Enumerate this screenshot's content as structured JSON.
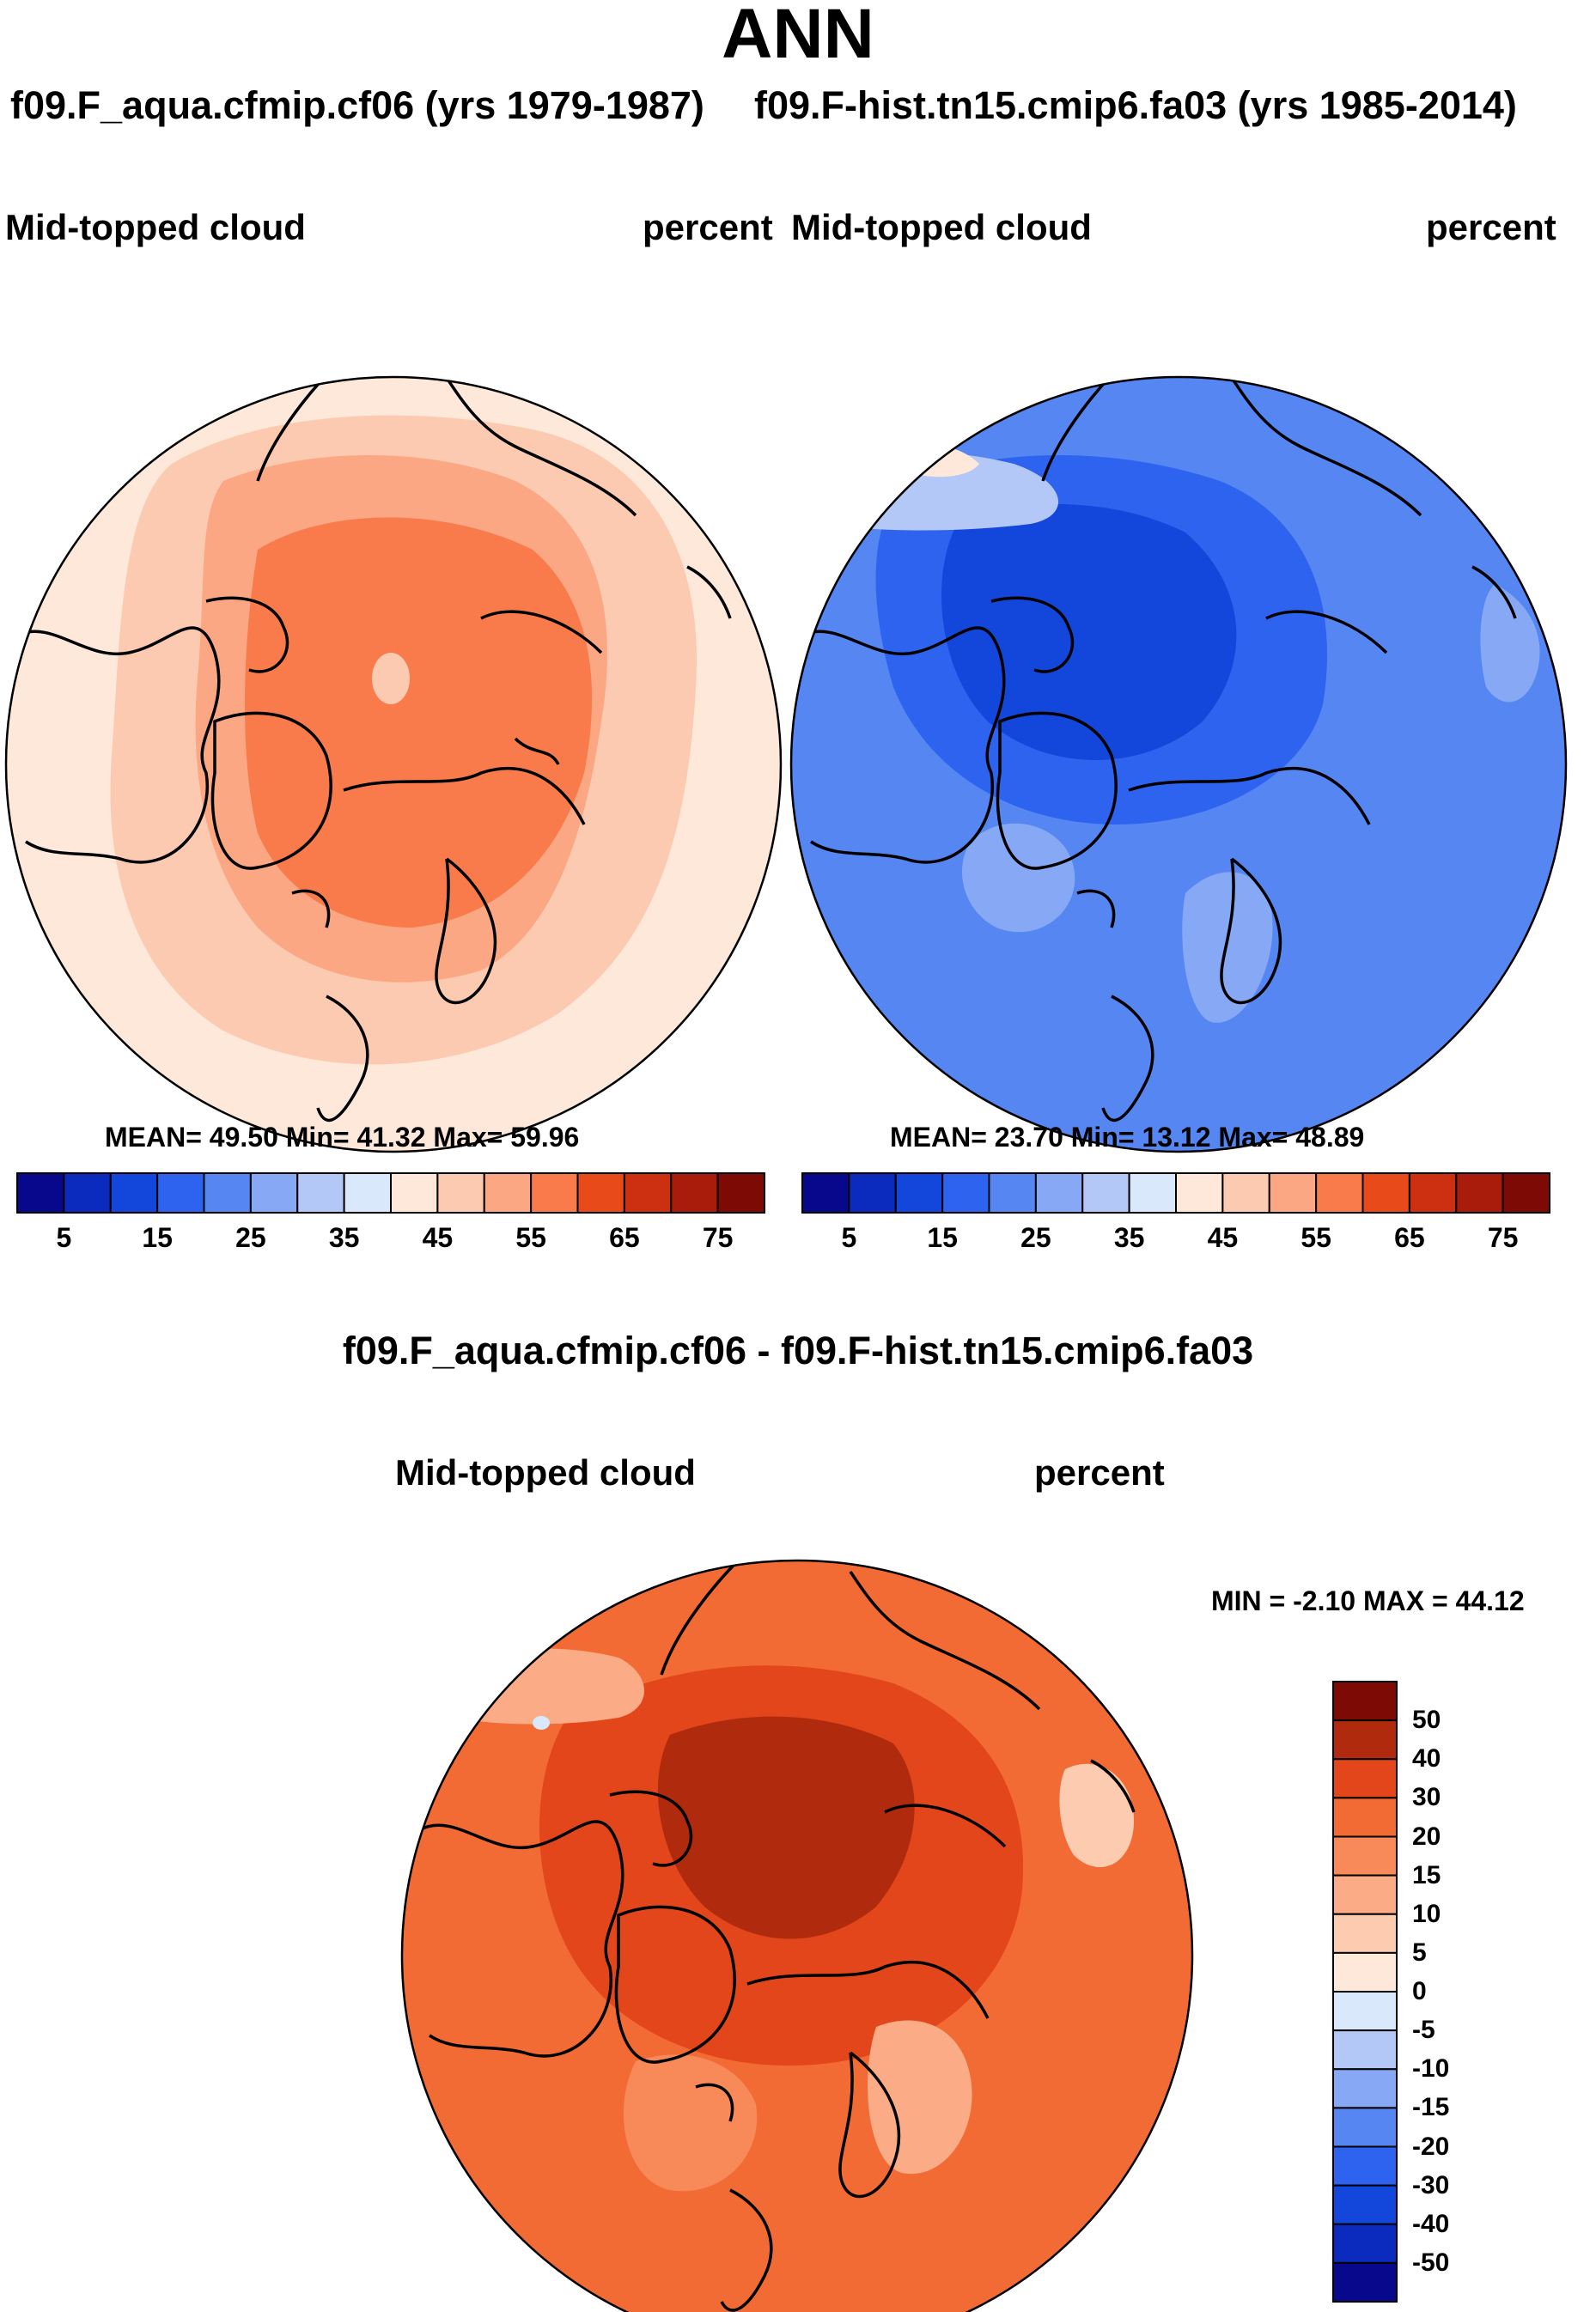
{
  "title": "ANN",
  "panels": [
    {
      "case_label": "f09.F_aqua.cfmip.cf06 (yrs 1979-1987)",
      "variable": "Mid-topped cloud",
      "units": "percent",
      "stats": "MEAN=  49.50  Min=  41.32  Max=  59.96",
      "mean": 49.5,
      "min": 41.32,
      "max": 59.96
    },
    {
      "case_label": "f09.F-hist.tn15.cmip6.fa03 (yrs 1985-2014)",
      "variable": "Mid-topped cloud",
      "units": "percent",
      "stats": "MEAN=  23.70  Min=  13.12  Max=  48.89",
      "mean": 23.7,
      "min": 13.12,
      "max": 48.89
    }
  ],
  "diff_panel": {
    "title": "f09.F_aqua.cfmip.cf06 - f09.F-hist.tn15.cmip6.fa03",
    "variable": "Mid-topped cloud",
    "units": "percent",
    "stats": "MIN =  -2.10 MAX =  44.12",
    "min": -2.1,
    "max": 44.12
  },
  "colorbar_abs": {
    "ticks": [
      "5",
      "15",
      "25",
      "35",
      "45",
      "55",
      "65",
      "75"
    ],
    "colors": [
      "#08088c",
      "#0a2bbd",
      "#1346db",
      "#2e63f0",
      "#5586f2",
      "#86a8f5",
      "#b3c8f7",
      "#d9e8fb",
      "#fde8da",
      "#fccab0",
      "#fba784",
      "#f97a4b",
      "#e84a1a",
      "#cc3010",
      "#a91c0b",
      "#7e0a05"
    ]
  },
  "colorbar_diff": {
    "ticks": [
      "50",
      "40",
      "30",
      "20",
      "15",
      "10",
      "5",
      "0",
      "-5",
      "-10",
      "-15",
      "-20",
      "-30",
      "-40",
      "-50"
    ],
    "colors": [
      "#7e0a05",
      "#b02a0e",
      "#e3461a",
      "#f26b35",
      "#f88a5a",
      "#fbab85",
      "#fdcbb0",
      "#fde8da",
      "#d9e8fb",
      "#b3c8f7",
      "#86a8f5",
      "#5586f2",
      "#2e63f0",
      "#1346db",
      "#0a2bbd",
      "#08088c"
    ]
  },
  "chart_data": [
    {
      "type": "heatmap",
      "title": "Mid-topped cloud",
      "subtitle": "f09.F_aqua.cfmip.cf06 (yrs 1979-1987)",
      "units": "percent",
      "projection": "north polar stereographic",
      "contour_levels": [
        5,
        10,
        15,
        20,
        25,
        30,
        35,
        40,
        45,
        50,
        55,
        60,
        65,
        70,
        75
      ],
      "mean": 49.5,
      "min": 41.32,
      "max": 59.96
    },
    {
      "type": "heatmap",
      "title": "Mid-topped cloud",
      "subtitle": "f09.F-hist.tn15.cmip6.fa03 (yrs 1985-2014)",
      "units": "percent",
      "projection": "north polar stereographic",
      "contour_levels": [
        5,
        10,
        15,
        20,
        25,
        30,
        35,
        40,
        45,
        50,
        55,
        60,
        65,
        70,
        75
      ],
      "mean": 23.7,
      "min": 13.12,
      "max": 48.89
    },
    {
      "type": "heatmap",
      "title": "Mid-topped cloud",
      "subtitle": "f09.F_aqua.cfmip.cf06 - f09.F-hist.tn15.cmip6.fa03",
      "units": "percent",
      "projection": "north polar stereographic",
      "contour_levels": [
        -50,
        -40,
        -30,
        -20,
        -15,
        -10,
        -5,
        0,
        5,
        10,
        15,
        20,
        30,
        40,
        50
      ],
      "min": -2.1,
      "max": 44.12
    }
  ]
}
